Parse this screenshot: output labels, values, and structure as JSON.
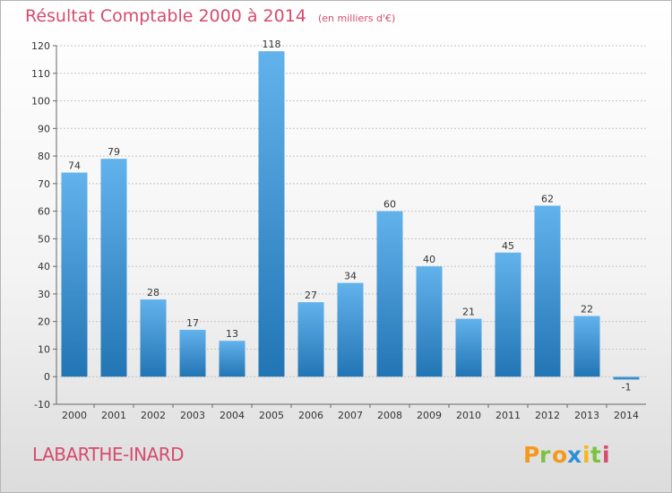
{
  "header": {
    "title": "Résultat Comptable 2000 à 2014",
    "unit": "(en milliers d'€)"
  },
  "footer": {
    "commune": "LABARTHE-INARD",
    "logo_text": "Proxiti"
  },
  "colors": {
    "title": "#d64b6e",
    "bar_top": "#62b2ec",
    "bar_bottom": "#2275b4",
    "grid": "#c4c4c4",
    "text": "#333333"
  },
  "chart_data": {
    "type": "bar",
    "categories": [
      "2000",
      "2001",
      "2002",
      "2003",
      "2004",
      "2005",
      "2006",
      "2007",
      "2008",
      "2009",
      "2010",
      "2011",
      "2012",
      "2013",
      "2014"
    ],
    "values": [
      74,
      79,
      28,
      17,
      13,
      118,
      27,
      34,
      60,
      40,
      21,
      45,
      62,
      22,
      -1
    ],
    "ylim": [
      -10,
      120
    ],
    "yticks": [
      -10,
      0,
      10,
      20,
      30,
      40,
      50,
      60,
      70,
      80,
      90,
      100,
      110,
      120
    ],
    "grid": true,
    "data_labels": true,
    "title": "Résultat Comptable 2000 à 2014",
    "xlabel": "",
    "ylabel": ""
  }
}
